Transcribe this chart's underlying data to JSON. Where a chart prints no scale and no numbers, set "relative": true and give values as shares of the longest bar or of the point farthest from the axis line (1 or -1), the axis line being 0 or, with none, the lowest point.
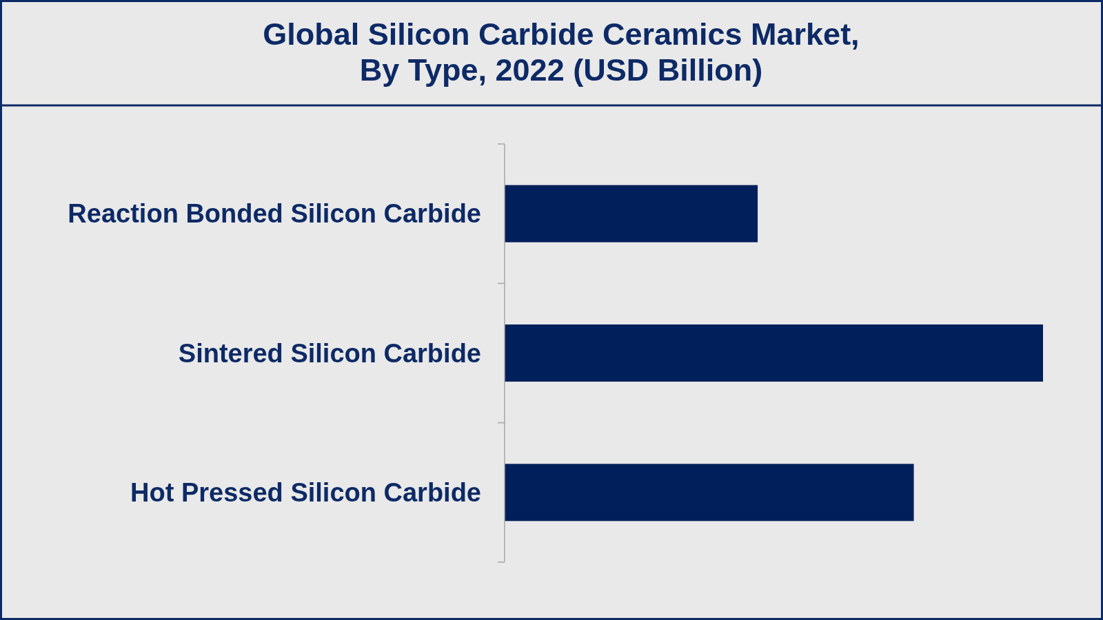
{
  "chart_data": {
    "type": "bar",
    "orientation": "horizontal",
    "relative": true,
    "title": "Global Silicon Carbide Ceramics Market,\nBy Type, 2022 (USD Billion)",
    "categories": [
      "Reaction Bonded Silicon Carbide",
      "Sintered Silicon Carbide",
      "Hot Pressed Silicon Carbide"
    ],
    "values": [
      0.47,
      1,
      0.76
    ],
    "color": "#001f5b"
  }
}
